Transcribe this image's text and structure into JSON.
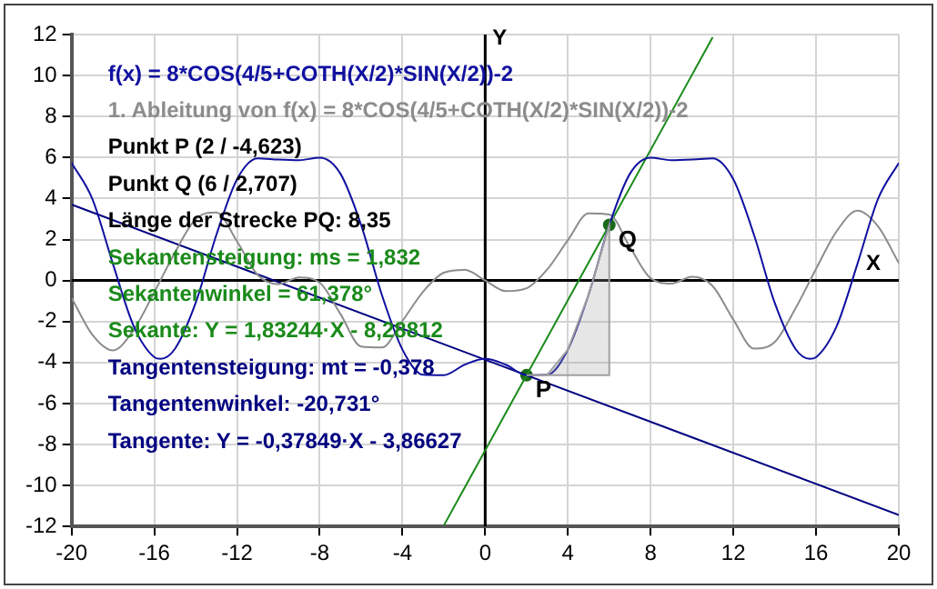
{
  "chart_data": {
    "type": "line",
    "xlabel": "X",
    "ylabel": "Y",
    "xlim": [
      -20,
      20
    ],
    "ylim": [
      -12,
      12
    ],
    "xticks": [
      -20,
      -16,
      -12,
      -8,
      -4,
      0,
      4,
      8,
      12,
      16,
      20
    ],
    "yticks": [
      -12,
      -10,
      -8,
      -6,
      -4,
      -2,
      0,
      2,
      4,
      6,
      8,
      10,
      12
    ],
    "grid": true,
    "legend": "top left",
    "series": [
      {
        "type": "area",
        "color": "#a0a0a0",
        "x": [
          2,
          3,
          4,
          5,
          6,
          6,
          2
        ],
        "values": [
          -4.623,
          -4.6,
          -3.37,
          -0.69,
          2.707,
          -4.623,
          -4.623
        ]
      },
      {
        "name": "f(x) = 8*COS(4/5+COTH(X/2)*SIN(X/2))-2",
        "color": "#1010a0",
        "x": [
          -20,
          -19,
          -18,
          -17,
          -16,
          -15.7,
          -15,
          -14,
          -13,
          -12,
          -11,
          -10,
          -9,
          -8,
          -7,
          -6,
          -5,
          -4,
          -3,
          -2,
          -1,
          0,
          1,
          2,
          3,
          4,
          5,
          6,
          7,
          8,
          9,
          10,
          11,
          12,
          13,
          14,
          15,
          15.7,
          16,
          17,
          18,
          19,
          20
        ],
        "values": [
          5.74,
          3.99,
          0.81,
          -2.22,
          -3.74,
          -3.82,
          -3.33,
          -1.09,
          2.22,
          4.94,
          5.96,
          5.9,
          5.87,
          5.99,
          5.21,
          2.71,
          -0.69,
          -3.37,
          -4.6,
          -4.62,
          -4.11,
          -3.82,
          -4.11,
          -4.62,
          -4.6,
          -3.37,
          -0.69,
          2.71,
          5.21,
          5.99,
          5.87,
          5.9,
          5.96,
          4.94,
          2.22,
          -1.09,
          -3.33,
          -3.82,
          -3.74,
          -2.22,
          0.81,
          3.99,
          5.74
        ]
      },
      {
        "name": "1. Ableitung von f(x) = 8*COS(4/5+COTH(X/2)*SIN(X/2))-2",
        "color": "#8c8c8c",
        "x": [
          -20,
          -19,
          -18,
          -17,
          -16,
          -15,
          -14,
          -13,
          -12,
          -11,
          -10,
          -9,
          -8,
          -7,
          -6,
          -5,
          -4,
          -3,
          -2,
          -1,
          0,
          1,
          2,
          3,
          4,
          5,
          6,
          7,
          8,
          9,
          10,
          11,
          12,
          13,
          14,
          15,
          16,
          17,
          18,
          19,
          20
        ],
        "values": [
          -0.85,
          -2.64,
          -3.41,
          -2.41,
          -0.57,
          1.37,
          3.0,
          3.32,
          1.91,
          0.27,
          -0.18,
          0.15,
          -0.11,
          -1.63,
          -3.22,
          -3.27,
          -1.97,
          -0.54,
          0.38,
          0.52,
          0,
          -0.52,
          -0.38,
          0.54,
          1.97,
          3.27,
          3.22,
          1.63,
          0.11,
          -0.15,
          0.18,
          -0.27,
          -1.91,
          -3.32,
          -3.0,
          -1.37,
          0.57,
          2.41,
          3.41,
          2.64,
          0.85
        ]
      },
      {
        "name": "Sekante: Y = 1,83244·X - 8,28812",
        "color": "#1a8a1a",
        "x": [
          -2,
          11
        ],
        "values": [
          -11.953,
          11.868
        ]
      },
      {
        "name": "Tangente: Y = -0,37849·X - 3,86627",
        "color": "#000080",
        "x": [
          -20,
          20
        ],
        "values": [
          3.704,
          -11.436
        ]
      },
      {
        "type": "scatter",
        "marker": "circle",
        "color": "#1a6a1a",
        "x": [
          2,
          6
        ],
        "values": [
          -4.623,
          2.707
        ]
      }
    ],
    "annotations": [
      "Punkt P (2 / -4,623)",
      "Punkt Q (6 / 2,707)",
      "Länge der Strecke PQ: 8,35",
      "Sekantensteigung: ms = 1,832",
      "Sekantenwinkel = 61,378°",
      "Tangentensteigung: mt = -0,378",
      "Tangentenwinkel: -20,731°",
      {
        "text": "P",
        "x": 2,
        "y": -4.623
      },
      {
        "text": "Q",
        "x": 6,
        "y": 2.707
      }
    ]
  }
}
